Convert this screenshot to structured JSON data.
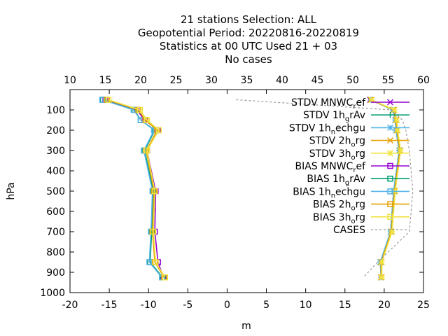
{
  "chart_data": {
    "type": "line",
    "title_lines": [
      "21 stations Selection: ALL",
      "Geopotential  Period: 20220816-20220819",
      "Statistics at 00 UTC  Used  21 + 03",
      "No cases"
    ],
    "xlabel": "m",
    "ylabel": "hPa",
    "xlim": [
      -20,
      25
    ],
    "ylim": [
      1000,
      0
    ],
    "x2lim": [
      10,
      60
    ],
    "xticks": [
      "-20",
      "-15",
      "-10",
      "-5",
      "0",
      "5",
      "10",
      "15",
      "20",
      "25"
    ],
    "x2ticks": [
      "10",
      "15",
      "20",
      "25",
      "30",
      "35",
      "40",
      "45",
      "50",
      "55",
      "60"
    ],
    "yticks": [
      "100",
      "200",
      "300",
      "400",
      "500",
      "600",
      "700",
      "800",
      "900",
      "1000"
    ],
    "legend_position": "top-right",
    "y": [
      50,
      100,
      150,
      200,
      300,
      500,
      700,
      850,
      925
    ],
    "series": [
      {
        "name": "STDV MNWC_ref",
        "legend_main": "STDV MNWC",
        "legend_sub": "r",
        "legend_tail": "ef",
        "group": "stdv",
        "color": "#9400d3",
        "marker": "x",
        "values": [
          18.2,
          21.2,
          21.5,
          21.6,
          22.0,
          21.3,
          20.9,
          19.6,
          19.6
        ]
      },
      {
        "name": "STDV 1h_grAv",
        "legend_main": "STDV 1h",
        "legend_sub": "g",
        "legend_tail": "rAv",
        "group": "stdv",
        "color": "#009e73",
        "marker": "plus",
        "values": [
          18.3,
          21.1,
          21.4,
          21.5,
          21.9,
          21.2,
          20.8,
          19.5,
          19.6
        ]
      },
      {
        "name": "STDV 1h_nechgu",
        "legend_main": "STDV 1h",
        "legend_sub": "n",
        "legend_tail": "echgu",
        "group": "stdv",
        "color": "#56b4e9",
        "marker": "star",
        "values": [
          18.3,
          21.1,
          21.4,
          21.5,
          21.9,
          21.2,
          20.8,
          19.5,
          19.6
        ]
      },
      {
        "name": "STDV 2h_org",
        "legend_main": "STDV 2h",
        "legend_sub": "o",
        "legend_tail": "rg",
        "group": "stdv",
        "color": "#e69f00",
        "marker": "x",
        "values": [
          18.3,
          21.2,
          21.5,
          21.6,
          22.0,
          21.3,
          20.9,
          19.6,
          19.6
        ]
      },
      {
        "name": "STDV 3h_org",
        "legend_main": "STDV 3h",
        "legend_sub": "o",
        "legend_tail": "rg",
        "group": "stdv",
        "color": "#f0e442",
        "marker": "star",
        "values": [
          18.4,
          21.3,
          21.6,
          21.7,
          22.1,
          21.4,
          21.0,
          19.7,
          19.7
        ]
      },
      {
        "name": "BIAS MNWC_ref",
        "legend_main": "BIAS MNWC",
        "legend_sub": "r",
        "legend_tail": "ef",
        "group": "bias",
        "color": "#9400d3",
        "marker": "square",
        "values": [
          -15.5,
          -11.5,
          -10.5,
          -8.8,
          -10.2,
          -9.1,
          -9.2,
          -8.8,
          -8.1
        ]
      },
      {
        "name": "BIAS 1h_grAv",
        "legend_main": "BIAS 1h",
        "legend_sub": "g",
        "legend_tail": "rAv",
        "group": "bias",
        "color": "#009e73",
        "marker": "square",
        "values": [
          -15.8,
          -11.8,
          -11.0,
          -9.2,
          -10.5,
          -9.4,
          -9.6,
          -9.8,
          -8.2
        ]
      },
      {
        "name": "BIAS 1h_nechgu",
        "legend_main": "BIAS 1h",
        "legend_sub": "n",
        "legend_tail": "echgu",
        "group": "bias",
        "color": "#56b4e9",
        "marker": "square",
        "values": [
          -15.9,
          -11.9,
          -11.0,
          -9.3,
          -10.6,
          -9.5,
          -9.7,
          -9.9,
          -8.3
        ]
      },
      {
        "name": "BIAS 2h_org",
        "legend_main": "BIAS 2h",
        "legend_sub": "o",
        "legend_tail": "rg",
        "group": "bias",
        "color": "#e69f00",
        "marker": "square",
        "values": [
          -15.3,
          -11.3,
          -10.4,
          -8.9,
          -10.3,
          -9.3,
          -9.5,
          -9.2,
          -8.0
        ]
      },
      {
        "name": "BIAS 3h_org",
        "legend_main": "BIAS 3h",
        "legend_sub": "o",
        "legend_tail": "rg",
        "group": "bias",
        "color": "#f0e442",
        "marker": "square",
        "values": [
          -15.1,
          -11.1,
          -10.2,
          -8.7,
          -10.2,
          -9.2,
          -9.4,
          -9.1,
          -7.9
        ]
      },
      {
        "name": "CASES",
        "legend_main": "CASES",
        "legend_sub": "",
        "legend_tail": "",
        "group": "cases",
        "color": "#999999",
        "marker": "none",
        "axis": "x2",
        "y": [
          50,
          100,
          150,
          200,
          300,
          500,
          700,
          850,
          925
        ],
        "values": [
          33.5,
          55.5,
          57,
          57.5,
          58,
          58.5,
          58,
          53.5,
          51.5
        ]
      }
    ]
  }
}
